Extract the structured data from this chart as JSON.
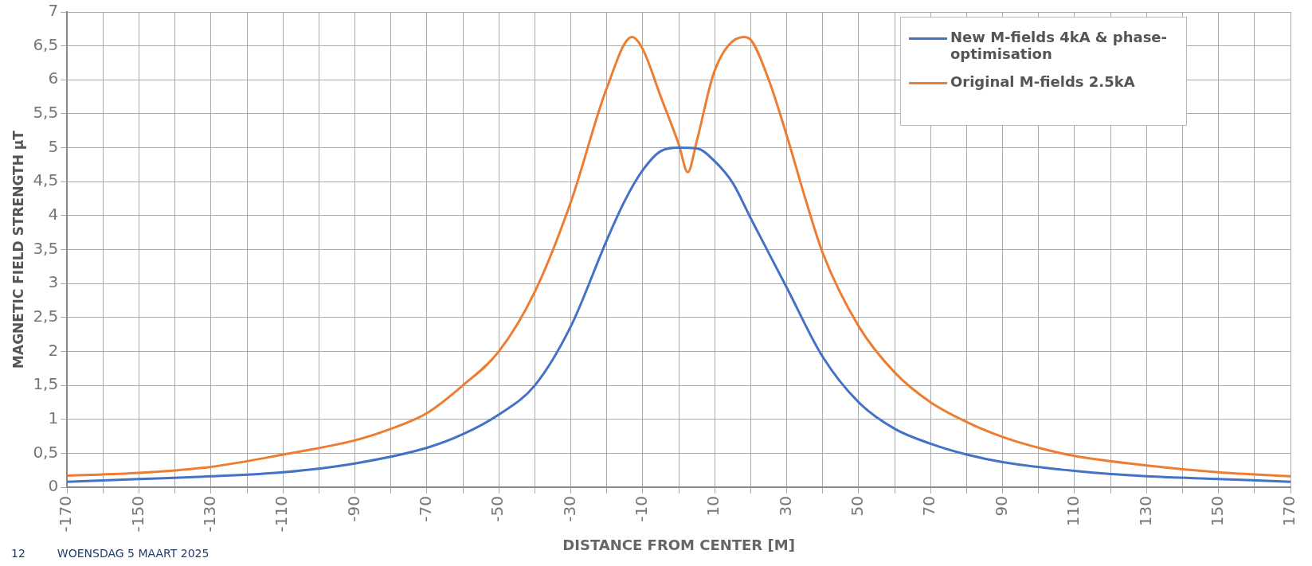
{
  "chart_data": {
    "type": "line",
    "xlabel": "DISTANCE FROM CENTER [M]",
    "ylabel": "MAGNETIC FIELD STRENGTH µT",
    "series": [
      {
        "name": "New M-fields 4kA & phase-optimisation",
        "color": "#4472c4",
        "x": [
          -170,
          -150,
          -130,
          -110,
          -90,
          -70,
          -60,
          -50,
          -40,
          -30,
          -20,
          -15,
          -10,
          -5,
          0,
          5,
          10,
          15,
          20,
          30,
          40,
          50,
          60,
          70,
          80,
          90,
          110,
          130,
          150,
          170
        ],
        "values": [
          0.08,
          0.12,
          0.16,
          0.22,
          0.35,
          0.58,
          0.78,
          1.07,
          1.5,
          2.37,
          3.64,
          4.22,
          4.67,
          4.95,
          5.0,
          4.99,
          4.8,
          4.48,
          3.96,
          2.94,
          1.92,
          1.25,
          0.86,
          0.64,
          0.48,
          0.37,
          0.24,
          0.16,
          0.12,
          0.08
        ]
      },
      {
        "name": "Original M-fields 2.5kA",
        "color": "#ed7d31",
        "x": [
          -170,
          -150,
          -130,
          -110,
          -90,
          -80,
          -70,
          -60,
          -50,
          -40,
          -30,
          -20,
          -13,
          -10,
          -5,
          0,
          2.5,
          5,
          10,
          18,
          20,
          25,
          30,
          35,
          40,
          50,
          60,
          70,
          80,
          90,
          100,
          110,
          130,
          150,
          170
        ],
        "values": [
          0.17,
          0.21,
          0.3,
          0.48,
          0.69,
          0.86,
          1.09,
          1.5,
          2.0,
          2.88,
          4.2,
          5.88,
          6.63,
          6.45,
          5.75,
          5.05,
          4.64,
          5.1,
          6.14,
          6.63,
          6.59,
          6.0,
          5.18,
          4.28,
          3.45,
          2.37,
          1.69,
          1.25,
          0.96,
          0.74,
          0.58,
          0.46,
          0.32,
          0.22,
          0.16
        ]
      }
    ],
    "xlim": [
      -170,
      170
    ],
    "xticks": [
      -170,
      {
        "value": -160,
        "label": null
      },
      -150,
      {
        "value": -140,
        "label": null
      },
      -130,
      {
        "value": -120,
        "label": null
      },
      -110,
      {
        "value": -100,
        "label": null
      },
      -90,
      {
        "value": -80,
        "label": null
      },
      -70,
      {
        "value": -60,
        "label": null
      },
      -50,
      {
        "value": -40,
        "label": null
      },
      -30,
      {
        "value": -20,
        "label": null
      },
      -10,
      {
        "value": 0,
        "label": null
      },
      10,
      {
        "value": 20,
        "label": null
      },
      30,
      {
        "value": 40,
        "label": null
      },
      50,
      {
        "value": 60,
        "label": null
      },
      70,
      {
        "value": 80,
        "label": null
      },
      90,
      {
        "value": 100,
        "label": null
      },
      110,
      {
        "value": 120,
        "label": null
      },
      130,
      {
        "value": 140,
        "label": null
      },
      150,
      {
        "value": 160,
        "label": null
      },
      170
    ],
    "ylim": [
      0,
      7
    ],
    "yticks": [
      0,
      {
        "value": 0.5,
        "label": "0,5"
      },
      1,
      {
        "value": 1.5,
        "label": "1,5"
      },
      2,
      {
        "value": 2.5,
        "label": "2,5"
      },
      3,
      {
        "value": 3.5,
        "label": "3,5"
      },
      4,
      {
        "value": 4.5,
        "label": "4,5"
      },
      5,
      {
        "value": 5.5,
        "label": "5,5"
      },
      6,
      {
        "value": 6.5,
        "label": "6,5"
      },
      7
    ],
    "grid": true,
    "legend": "top right",
    "marker": "none",
    "line_style": "solid",
    "annotations": [
      "12",
      "WOENSDAG 5 MAART 2025"
    ]
  }
}
